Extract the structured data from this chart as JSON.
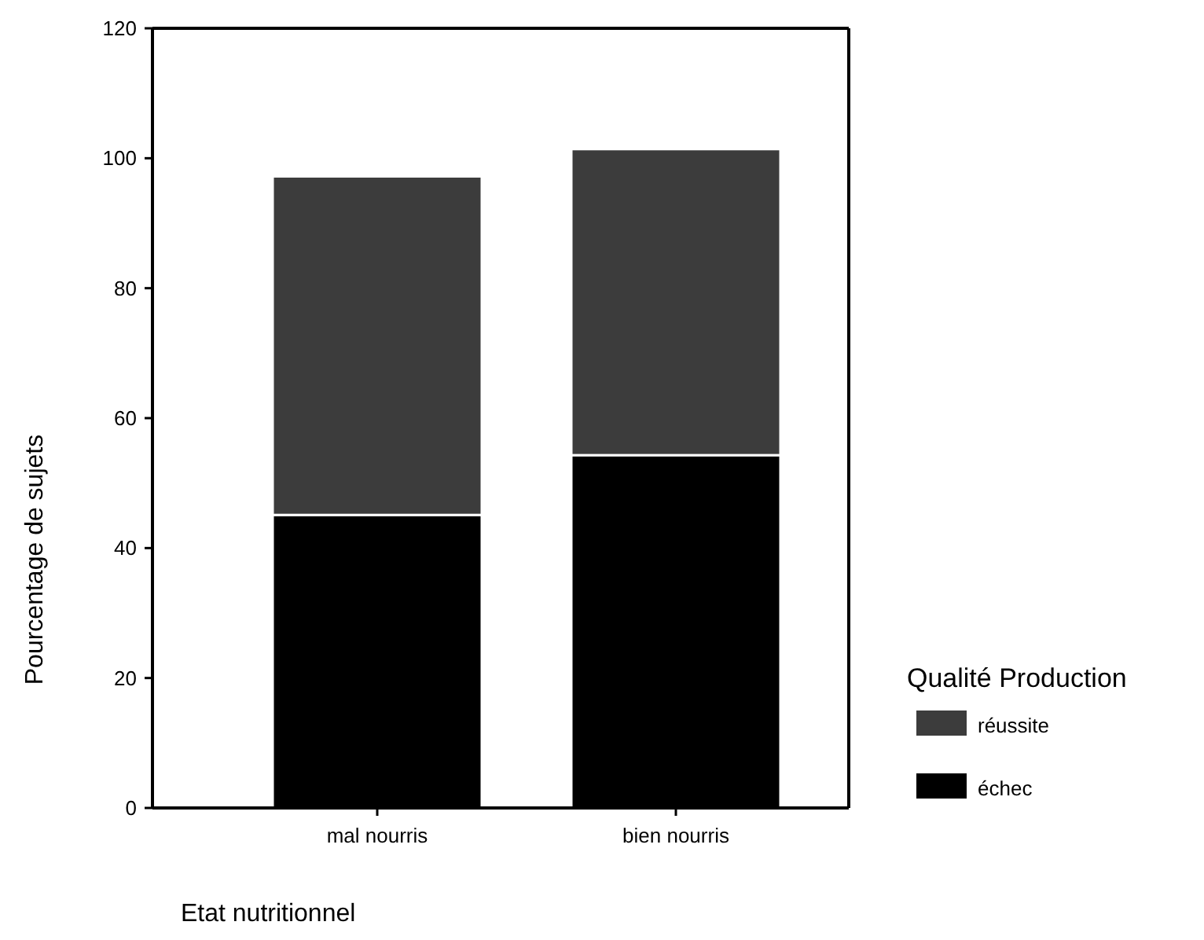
{
  "chart_data": {
    "type": "bar",
    "stacked": true,
    "xlabel": "Etat nutritionnel",
    "ylabel": "Pourcentage de sujets",
    "legend_title": "Qualité Production",
    "legend": "right",
    "categories": [
      "mal nourris",
      "bien nourris"
    ],
    "series": [
      {
        "name": "échec",
        "color": "#000000",
        "values": [
          45.1,
          54.3
        ]
      },
      {
        "name": "réussite",
        "color": "#3c3c3c",
        "values": [
          52.1,
          47.1
        ]
      }
    ],
    "ylim": [
      0,
      120
    ],
    "yticks": [
      0,
      20,
      40,
      60,
      80,
      100,
      120
    ],
    "grid": false
  }
}
